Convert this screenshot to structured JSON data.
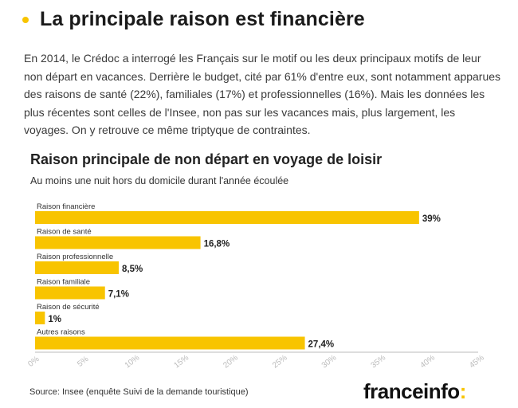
{
  "header": {
    "title": "La principale raison est financière"
  },
  "intro": "En 2014, le Crédoc a interrogé les Français sur le motif ou les deux principaux motifs de leur non départ en vacances. Derrière le budget, cité par 61% d'entre eux, sont notamment apparues des raisons de santé (22%), familiales (17%) et professionnelles (16%). Mais les données les plus récentes sont celles de l'Insee, non pas sur les vacances mais, plus largement, les voyages. On y retrouve ce même triptyque de contraintes.",
  "chart_data": {
    "type": "bar",
    "orientation": "horizontal",
    "title": "Raison principale de non départ en voyage de loisir",
    "subtitle": "Au moins une nuit hors du domicile durant l'année écoulée",
    "categories": [
      "Raison financière",
      "Raison de santé",
      "Raison professionnelle",
      "Raison familiale",
      "Raison de sécurité",
      "Autres raisons"
    ],
    "values": [
      39,
      16.8,
      8.5,
      7.1,
      1,
      27.4
    ],
    "value_labels": [
      "39%",
      "16,8%",
      "8,5%",
      "7,1%",
      "1%",
      "27,4%"
    ],
    "xlim": [
      0,
      45
    ],
    "ticks": [
      0,
      5,
      10,
      15,
      20,
      25,
      30,
      35,
      40,
      45
    ],
    "tick_labels": [
      "0%",
      "5%",
      "10%",
      "15%",
      "20%",
      "25%",
      "30%",
      "35%",
      "40%",
      "45%"
    ],
    "bar_color": "#f8c400",
    "grid": false
  },
  "source": "Source: Insee (enquête Suivi de la demande touristique)",
  "logo": {
    "text": "franceinfo",
    "mark": ":"
  },
  "colors": {
    "accent": "#f8c400"
  }
}
